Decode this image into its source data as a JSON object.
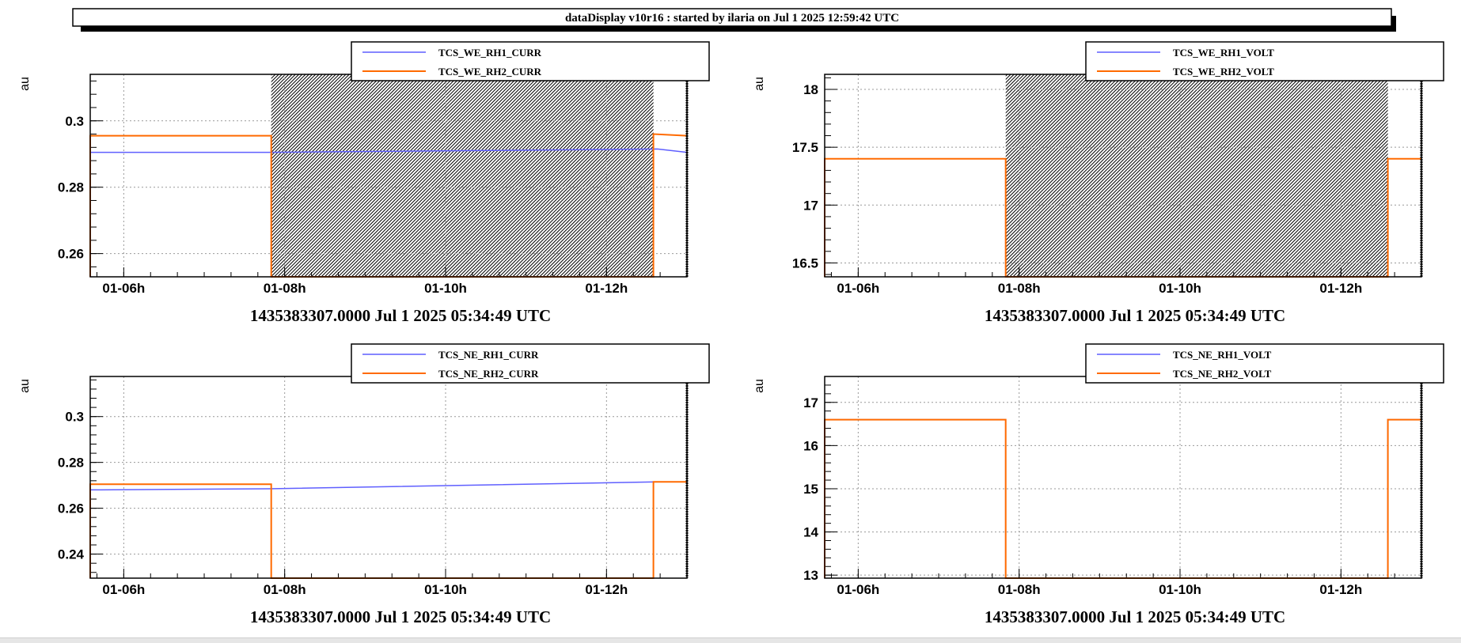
{
  "header": {
    "title": "dataDisplay v10r16 : started by ilaria on Jul  1 2025 12:59:42 UTC"
  },
  "colors": {
    "series1": "#5f5fff",
    "series2": "#ff6a00",
    "hatch": "#000000",
    "grid": "#999999"
  },
  "chart_data": [
    {
      "type": "line",
      "position": "top-left",
      "ylabel": "au",
      "xlabel": "1435383307.0000 Jul 1 2025 05:34:49 UTC",
      "xlim": [
        "2025-07-01 05:35",
        "2025-07-01 13:00"
      ],
      "ylim": [
        0.253,
        0.314
      ],
      "xticks": [
        {
          "t": "2025-07-01 06:00",
          "label": "01-06h"
        },
        {
          "t": "2025-07-01 08:00",
          "label": "01-08h"
        },
        {
          "t": "2025-07-01 10:00",
          "label": "01-10h"
        },
        {
          "t": "2025-07-01 12:00",
          "label": "01-12h"
        }
      ],
      "yticks": [
        {
          "v": 0.26,
          "label": "0.26"
        },
        {
          "v": 0.28,
          "label": "0.28"
        },
        {
          "v": 0.3,
          "label": "0.3"
        }
      ],
      "no_data_hatch": [
        [
          "2025-07-01 07:50",
          "2025-07-01 12:35"
        ]
      ],
      "legend": {
        "placement": "top",
        "entries": [
          "TCS_WE_RH1_CURR",
          "TCS_WE_RH2_CURR"
        ]
      },
      "series": [
        {
          "name": "TCS_WE_RH1_CURR",
          "color": "#5f5fff",
          "x": [
            "2025-07-01 05:35",
            "2025-07-01 07:48",
            "2025-07-01 12:38",
            "2025-07-01 13:00"
          ],
          "y": [
            0.2905,
            0.2905,
            0.2915,
            0.2905
          ]
        },
        {
          "name": "TCS_WE_RH2_CURR",
          "color": "#ff6a00",
          "x": [
            "2025-07-01 05:35",
            "2025-07-01 05:35",
            "2025-07-01 07:50",
            "2025-07-01 07:50",
            "2025-07-01 12:35",
            "2025-07-01 12:35",
            "2025-07-01 13:00"
          ],
          "y": [
            0.253,
            0.2955,
            0.2955,
            0.253,
            0.253,
            0.296,
            0.2955
          ]
        }
      ]
    },
    {
      "type": "line",
      "position": "top-right",
      "ylabel": "au",
      "xlabel": "1435383307.0000 Jul 1 2025 05:34:49 UTC",
      "xlim": [
        "2025-07-01 05:35",
        "2025-07-01 13:00"
      ],
      "ylim": [
        16.38,
        18.13
      ],
      "xticks": [
        {
          "t": "2025-07-01 06:00",
          "label": "01-06h"
        },
        {
          "t": "2025-07-01 08:00",
          "label": "01-08h"
        },
        {
          "t": "2025-07-01 10:00",
          "label": "01-10h"
        },
        {
          "t": "2025-07-01 12:00",
          "label": "01-12h"
        }
      ],
      "yticks": [
        {
          "v": 16.5,
          "label": "16.5"
        },
        {
          "v": 17,
          "label": "17"
        },
        {
          "v": 17.5,
          "label": "17.5"
        },
        {
          "v": 18,
          "label": "18"
        }
      ],
      "no_data_hatch": [
        [
          "2025-07-01 07:50",
          "2025-07-01 12:35"
        ]
      ],
      "legend": {
        "placement": "top",
        "entries": [
          "TCS_WE_RH1_VOLT",
          "TCS_WE_RH2_VOLT"
        ]
      },
      "series": [
        {
          "name": "TCS_WE_RH1_VOLT",
          "color": "#5f5fff",
          "x": [
            "2025-07-01 05:35",
            "2025-07-01 05:35",
            "2025-07-01 07:50",
            "2025-07-01 07:50",
            "2025-07-01 12:35",
            "2025-07-01 12:35",
            "2025-07-01 13:00"
          ],
          "y": [
            16.38,
            17.4,
            17.4,
            16.38,
            16.38,
            17.4,
            17.4
          ]
        },
        {
          "name": "TCS_WE_RH2_VOLT",
          "color": "#ff6a00",
          "x": [
            "2025-07-01 05:35",
            "2025-07-01 05:35",
            "2025-07-01 07:50",
            "2025-07-01 07:50",
            "2025-07-01 12:35",
            "2025-07-01 12:35",
            "2025-07-01 13:00"
          ],
          "y": [
            16.38,
            17.4,
            17.4,
            16.38,
            16.38,
            17.4,
            17.4
          ]
        }
      ]
    },
    {
      "type": "line",
      "position": "bottom-left",
      "ylabel": "au",
      "xlabel": "1435383307.0000 Jul 1 2025 05:34:49 UTC",
      "xlim": [
        "2025-07-01 05:35",
        "2025-07-01 13:00"
      ],
      "ylim": [
        0.2295,
        0.3175
      ],
      "xticks": [
        {
          "t": "2025-07-01 06:00",
          "label": "01-06h"
        },
        {
          "t": "2025-07-01 08:00",
          "label": "01-08h"
        },
        {
          "t": "2025-07-01 10:00",
          "label": "01-10h"
        },
        {
          "t": "2025-07-01 12:00",
          "label": "01-12h"
        }
      ],
      "yticks": [
        {
          "v": 0.24,
          "label": "0.24"
        },
        {
          "v": 0.26,
          "label": "0.26"
        },
        {
          "v": 0.28,
          "label": "0.28"
        },
        {
          "v": 0.3,
          "label": "0.3"
        }
      ],
      "no_data_hatch": [],
      "legend": {
        "placement": "top",
        "entries": [
          "TCS_NE_RH1_CURR",
          "TCS_NE_RH2_CURR"
        ]
      },
      "series": [
        {
          "name": "TCS_NE_RH1_CURR",
          "color": "#5f5fff",
          "x": [
            "2025-07-01 05:35",
            "2025-07-01 07:48",
            "2025-07-01 12:38",
            "2025-07-01 13:00"
          ],
          "y": [
            0.268,
            0.2685,
            0.2715,
            0.2715
          ]
        },
        {
          "name": "TCS_NE_RH2_CURR",
          "color": "#ff6a00",
          "x": [
            "2025-07-01 05:35",
            "2025-07-01 05:35",
            "2025-07-01 07:50",
            "2025-07-01 07:50",
            "2025-07-01 12:35",
            "2025-07-01 12:35",
            "2025-07-01 13:00"
          ],
          "y": [
            0.2295,
            0.2705,
            0.2705,
            0.2295,
            0.2295,
            0.2715,
            0.2715
          ]
        }
      ]
    },
    {
      "type": "line",
      "position": "bottom-right",
      "ylabel": "au",
      "xlabel": "1435383307.0000 Jul 1 2025 05:34:49 UTC",
      "xlim": [
        "2025-07-01 05:35",
        "2025-07-01 13:00"
      ],
      "ylim": [
        12.93,
        17.6
      ],
      "xticks": [
        {
          "t": "2025-07-01 06:00",
          "label": "01-06h"
        },
        {
          "t": "2025-07-01 08:00",
          "label": "01-08h"
        },
        {
          "t": "2025-07-01 10:00",
          "label": "01-10h"
        },
        {
          "t": "2025-07-01 12:00",
          "label": "01-12h"
        }
      ],
      "yticks": [
        {
          "v": 13,
          "label": "13"
        },
        {
          "v": 14,
          "label": "14"
        },
        {
          "v": 15,
          "label": "15"
        },
        {
          "v": 16,
          "label": "16"
        },
        {
          "v": 17,
          "label": "17"
        }
      ],
      "no_data_hatch": [],
      "legend": {
        "placement": "top",
        "entries": [
          "TCS_NE_RH1_VOLT",
          "TCS_NE_RH2_VOLT"
        ]
      },
      "series": [
        {
          "name": "TCS_NE_RH1_VOLT",
          "color": "#5f5fff",
          "x": [
            "2025-07-01 05:35",
            "2025-07-01 05:35",
            "2025-07-01 07:50",
            "2025-07-01 07:50",
            "2025-07-01 12:35",
            "2025-07-01 12:35",
            "2025-07-01 13:00"
          ],
          "y": [
            12.93,
            16.6,
            16.6,
            12.93,
            12.93,
            16.6,
            16.6
          ]
        },
        {
          "name": "TCS_NE_RH2_VOLT",
          "color": "#ff6a00",
          "x": [
            "2025-07-01 05:35",
            "2025-07-01 05:35",
            "2025-07-01 07:50",
            "2025-07-01 07:50",
            "2025-07-01 12:35",
            "2025-07-01 12:35",
            "2025-07-01 13:00"
          ],
          "y": [
            12.93,
            16.6,
            16.6,
            12.93,
            12.93,
            16.6,
            16.6
          ]
        }
      ]
    }
  ]
}
